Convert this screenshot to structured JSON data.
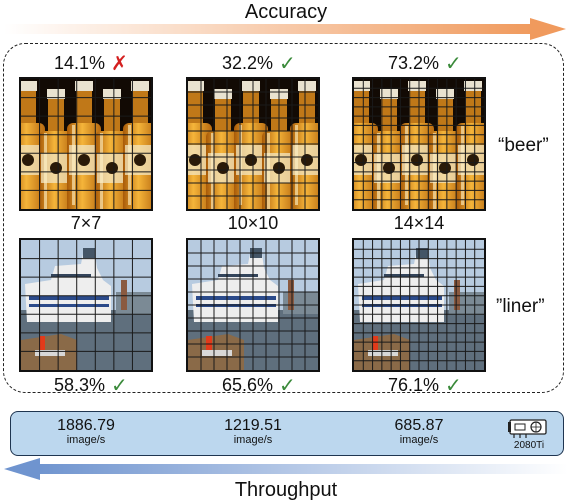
{
  "top_axis": {
    "label": "Accuracy",
    "color": "#f2a36c"
  },
  "bottom_axis": {
    "label": "Throughput",
    "color": "#6f94cf"
  },
  "grids": [
    "7×7",
    "10×10",
    "14×14"
  ],
  "beer": {
    "class_label": "“beer”",
    "accuracies": [
      {
        "value": "14.1%",
        "mark": "✗",
        "correct": false
      },
      {
        "value": "32.2%",
        "mark": "✓",
        "correct": true
      },
      {
        "value": "73.2%",
        "mark": "✓",
        "correct": true
      }
    ]
  },
  "liner": {
    "class_label": "”liner”",
    "accuracies": [
      {
        "value": "58.3%",
        "mark": "✓",
        "correct": true
      },
      {
        "value": "65.6%",
        "mark": "✓",
        "correct": true
      },
      {
        "value": "76.1%",
        "mark": "✓",
        "correct": true
      }
    ]
  },
  "throughput": {
    "values": [
      "1886.79",
      "1219.51",
      "685.87"
    ],
    "unit": "image/s",
    "gpu_label": "2080Ti"
  },
  "colors": {
    "correct": "#3a8a3a",
    "wrong": "#d42020",
    "panel": "#bcd7ee"
  }
}
